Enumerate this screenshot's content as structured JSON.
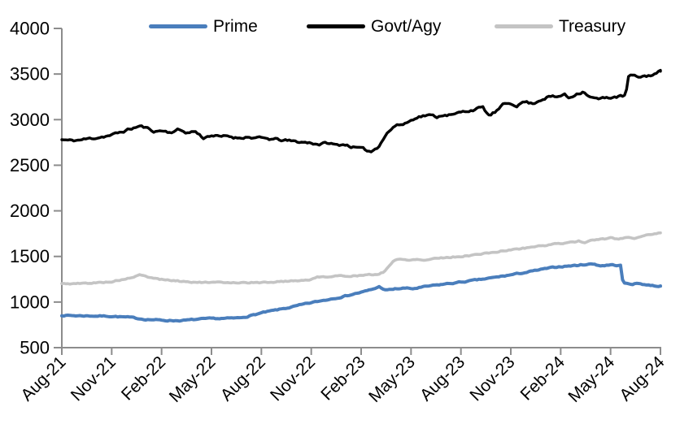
{
  "chart_data": {
    "type": "line",
    "x_tick_labels": [
      "Aug-21",
      "Nov-21",
      "Feb-22",
      "May-22",
      "Aug-22",
      "Nov-22",
      "Feb-23",
      "May-23",
      "Aug-23",
      "Nov-23",
      "Feb-24",
      "May-24",
      "Aug-24"
    ],
    "y_tick_labels": [
      "4000",
      "3500",
      "3000",
      "2500",
      "2000",
      "1500",
      "1000",
      "500"
    ],
    "ylim": [
      500,
      4000
    ],
    "y_tick_step": 500,
    "x_unit": "months since Aug-21",
    "x_range": [
      0,
      36
    ],
    "grid": false,
    "legend_position": "top",
    "axis_color": "#8c8c8c",
    "series": [
      {
        "name": "Prime",
        "color": "#4a7ebc",
        "points": [
          [
            0,
            855
          ],
          [
            1,
            850
          ],
          [
            2,
            848
          ],
          [
            3,
            845
          ],
          [
            4,
            832
          ],
          [
            5,
            812
          ],
          [
            6,
            800
          ],
          [
            7,
            797
          ],
          [
            7.5,
            800
          ],
          [
            8,
            808
          ],
          [
            9,
            818
          ],
          [
            10,
            820
          ],
          [
            10.7,
            826
          ],
          [
            11.2,
            845
          ],
          [
            12,
            880
          ],
          [
            13,
            915
          ],
          [
            14,
            952
          ],
          [
            15,
            992
          ],
          [
            16,
            1028
          ],
          [
            17,
            1065
          ],
          [
            17.7,
            1095
          ],
          [
            18.2,
            1115
          ],
          [
            18.7,
            1140
          ],
          [
            19.1,
            1168
          ],
          [
            19.5,
            1128
          ],
          [
            20,
            1142
          ],
          [
            20.6,
            1152
          ],
          [
            21.1,
            1145
          ],
          [
            22,
            1172
          ],
          [
            23,
            1196
          ],
          [
            24,
            1218
          ],
          [
            25,
            1242
          ],
          [
            26,
            1268
          ],
          [
            27,
            1298
          ],
          [
            28,
            1328
          ],
          [
            29,
            1362
          ],
          [
            30,
            1390
          ],
          [
            31,
            1402
          ],
          [
            31.6,
            1415
          ],
          [
            32,
            1418
          ],
          [
            32.4,
            1398
          ],
          [
            33,
            1408
          ],
          [
            33.6,
            1400
          ],
          [
            33.75,
            1205
          ],
          [
            34.3,
            1198
          ],
          [
            34.7,
            1205
          ],
          [
            35.2,
            1188
          ],
          [
            35.7,
            1178
          ],
          [
            36,
            1175
          ]
        ]
      },
      {
        "name": "Govt/Agy",
        "color": "#000000",
        "points": [
          [
            0,
            2780
          ],
          [
            0.5,
            2770
          ],
          [
            1,
            2775
          ],
          [
            2,
            2800
          ],
          [
            3,
            2830
          ],
          [
            4,
            2890
          ],
          [
            4.7,
            2930
          ],
          [
            5.2,
            2900
          ],
          [
            5.6,
            2870
          ],
          [
            6,
            2880
          ],
          [
            6.5,
            2860
          ],
          [
            7,
            2890
          ],
          [
            7.6,
            2855
          ],
          [
            8,
            2875
          ],
          [
            8.5,
            2800
          ],
          [
            9,
            2830
          ],
          [
            9.5,
            2810
          ],
          [
            10,
            2820
          ],
          [
            10.5,
            2800
          ],
          [
            11,
            2810
          ],
          [
            12,
            2795
          ],
          [
            13,
            2780
          ],
          [
            14,
            2760
          ],
          [
            15,
            2745
          ],
          [
            15.5,
            2730
          ],
          [
            16,
            2745
          ],
          [
            16.5,
            2720
          ],
          [
            17,
            2730
          ],
          [
            17.5,
            2700
          ],
          [
            18,
            2680
          ],
          [
            18.6,
            2650
          ],
          [
            19,
            2700
          ],
          [
            19.5,
            2840
          ],
          [
            20,
            2930
          ],
          [
            20.5,
            2950
          ],
          [
            21,
            2990
          ],
          [
            21.3,
            3030
          ],
          [
            22,
            3050
          ],
          [
            22.6,
            3030
          ],
          [
            23,
            3060
          ],
          [
            23.5,
            3050
          ],
          [
            24,
            3080
          ],
          [
            25,
            3120
          ],
          [
            25.3,
            3135
          ],
          [
            25.7,
            3040
          ],
          [
            26.2,
            3100
          ],
          [
            26.6,
            3170
          ],
          [
            27,
            3180
          ],
          [
            27.4,
            3155
          ],
          [
            27.8,
            3200
          ],
          [
            28.3,
            3175
          ],
          [
            28.8,
            3220
          ],
          [
            29.3,
            3255
          ],
          [
            29.8,
            3245
          ],
          [
            30.2,
            3280
          ],
          [
            30.5,
            3235
          ],
          [
            31,
            3290
          ],
          [
            31.4,
            3310
          ],
          [
            31.8,
            3245
          ],
          [
            32.3,
            3225
          ],
          [
            33,
            3245
          ],
          [
            33.9,
            3260
          ],
          [
            34.1,
            3490
          ],
          [
            34.6,
            3465
          ],
          [
            35.2,
            3480
          ],
          [
            35.6,
            3495
          ],
          [
            36,
            3530
          ]
        ]
      },
      {
        "name": "Treasury",
        "color": "#c4c4c4",
        "points": [
          [
            0,
            1200
          ],
          [
            1,
            1202
          ],
          [
            2,
            1210
          ],
          [
            3,
            1225
          ],
          [
            4,
            1258
          ],
          [
            4.7,
            1295
          ],
          [
            5.3,
            1268
          ],
          [
            6,
            1248
          ],
          [
            7,
            1230
          ],
          [
            8,
            1218
          ],
          [
            9,
            1212
          ],
          [
            10,
            1216
          ],
          [
            11,
            1214
          ],
          [
            12,
            1212
          ],
          [
            13,
            1224
          ],
          [
            14,
            1234
          ],
          [
            15,
            1246
          ],
          [
            15.4,
            1276
          ],
          [
            16,
            1280
          ],
          [
            17,
            1286
          ],
          [
            18,
            1292
          ],
          [
            19,
            1302
          ],
          [
            19.4,
            1335
          ],
          [
            19.9,
            1445
          ],
          [
            20.2,
            1468
          ],
          [
            20.8,
            1462
          ],
          [
            21.3,
            1472
          ],
          [
            21.8,
            1458
          ],
          [
            22.3,
            1478
          ],
          [
            23,
            1488
          ],
          [
            24,
            1500
          ],
          [
            25,
            1522
          ],
          [
            26,
            1546
          ],
          [
            27,
            1572
          ],
          [
            28,
            1596
          ],
          [
            29,
            1622
          ],
          [
            30,
            1642
          ],
          [
            30.6,
            1658
          ],
          [
            31.1,
            1668
          ],
          [
            31.5,
            1652
          ],
          [
            32,
            1682
          ],
          [
            32.6,
            1692
          ],
          [
            33.1,
            1702
          ],
          [
            33.5,
            1688
          ],
          [
            34,
            1712
          ],
          [
            34.4,
            1698
          ],
          [
            35,
            1732
          ],
          [
            35.5,
            1746
          ],
          [
            36,
            1758
          ]
        ]
      }
    ]
  }
}
